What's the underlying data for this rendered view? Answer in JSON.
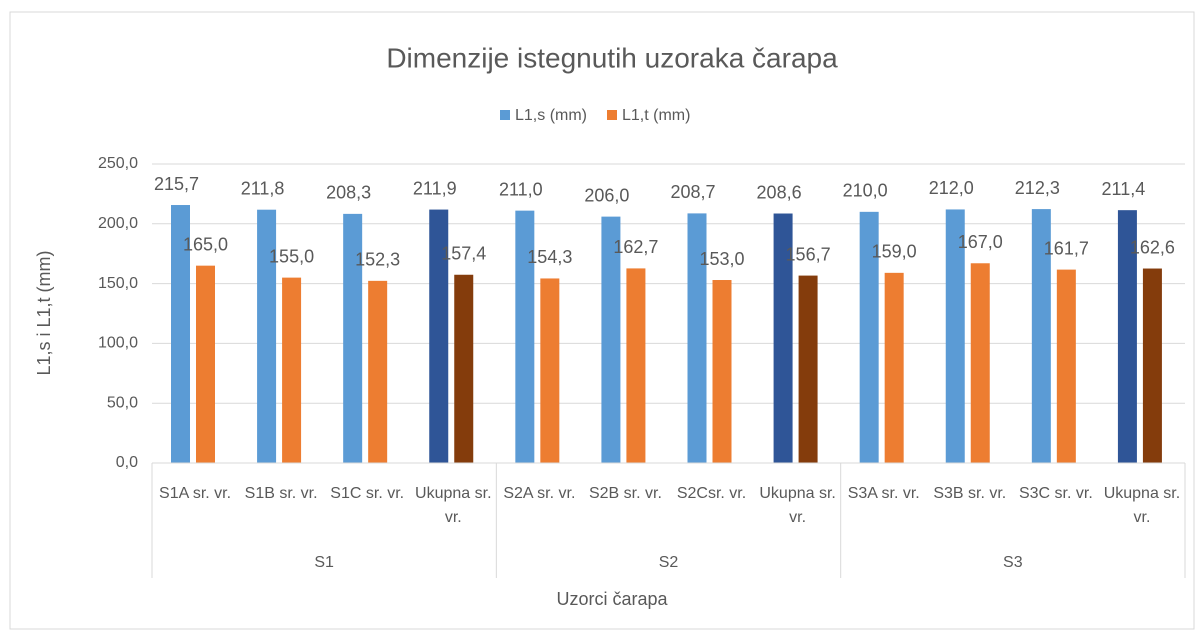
{
  "chart_data": {
    "type": "bar",
    "title": "Dimenzije istegnutih uzoraka čarapa",
    "xlabel": "Uzorci čarapa",
    "ylabel": "L1,s i L1,t (mm)",
    "categories": [
      "S1A sr. vr.",
      "S1B sr. vr.",
      "S1C sr. vr.",
      "Ukupna sr. vr.",
      "S2A sr. vr.",
      "S2B sr. vr.",
      "S2Csr. vr.",
      "Ukupna sr. vr.",
      "S3A sr. vr.",
      "S3B sr. vr.",
      "S3C sr. vr.",
      "Ukupna sr. vr."
    ],
    "groups": [
      {
        "name": "S1",
        "size": 4
      },
      {
        "name": "S2",
        "size": 4
      },
      {
        "name": "S3",
        "size": 4
      }
    ],
    "series": [
      {
        "name": "L1,s (mm)",
        "color": "#5b9bd5",
        "colors": [
          "#5b9bd5",
          "#5b9bd5",
          "#5b9bd5",
          "#2f5597",
          "#5b9bd5",
          "#5b9bd5",
          "#5b9bd5",
          "#2f5597",
          "#5b9bd5",
          "#5b9bd5",
          "#5b9bd5",
          "#2f5597"
        ],
        "values": [
          215.7,
          211.8,
          208.3,
          211.9,
          211.0,
          206.0,
          208.7,
          208.6,
          210.0,
          212.0,
          212.3,
          211.4
        ],
        "value_labels": [
          "215,7",
          "211,8",
          "208,3",
          "211,9",
          "211,0",
          "206,0",
          "208,7",
          "208,6",
          "210,0",
          "212,0",
          "212,3",
          "211,4"
        ]
      },
      {
        "name": "L1,t (mm)",
        "color": "#ed7d31",
        "colors": [
          "#ed7d31",
          "#ed7d31",
          "#ed7d31",
          "#843c0c",
          "#ed7d31",
          "#ed7d31",
          "#ed7d31",
          "#843c0c",
          "#ed7d31",
          "#ed7d31",
          "#ed7d31",
          "#843c0c"
        ],
        "values": [
          165.0,
          155.0,
          152.3,
          157.4,
          154.3,
          162.7,
          153.0,
          156.7,
          159.0,
          167.0,
          161.7,
          162.6
        ],
        "value_labels": [
          "165,0",
          "155,0",
          "152,3",
          "157,4",
          "154,3",
          "162,7",
          "153,0",
          "156,7",
          "159,0",
          "167,0",
          "161,7",
          "162,6"
        ]
      }
    ],
    "ylim": [
      0,
      250
    ],
    "yticks": [
      {
        "value": 0,
        "label": "0,0"
      },
      {
        "value": 50,
        "label": "50,0"
      },
      {
        "value": 100,
        "label": "100,0"
      },
      {
        "value": 150,
        "label": "150,0"
      },
      {
        "value": 200,
        "label": "200,0"
      },
      {
        "value": 250,
        "label": "250,0"
      }
    ],
    "grid": true,
    "legend": "top"
  }
}
